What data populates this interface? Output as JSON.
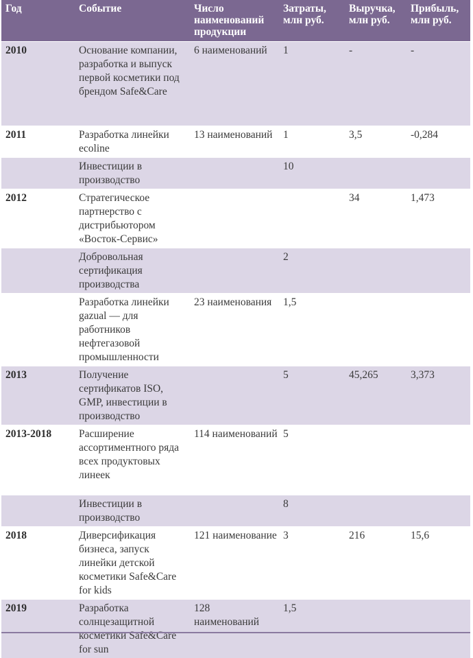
{
  "headers": [
    "Год",
    "Событие",
    "Число наименований продукции",
    "Затраты, млн руб.",
    "Выручка, млн руб.",
    "Прибыль, млн руб."
  ],
  "rows": [
    {
      "year": "2010",
      "event": "Основание компании, разработка и выпуск первой косметики под брендом Safe&Care",
      "products": "6 наименований",
      "costs": "1",
      "revenue": "-",
      "profit": "-"
    },
    {
      "year": "2011",
      "event": "Разработка линейки ecoline",
      "products": "13 наименований",
      "costs": "1",
      "revenue": "3,5",
      "profit": "-0,284"
    },
    {
      "year": "",
      "event": "Инвестиции в производство",
      "products": "",
      "costs": "10",
      "revenue": "",
      "profit": ""
    },
    {
      "year": "2012",
      "event": "Стратегическое партнерство с дистрибьютором «Восток-Сервис»",
      "products": "",
      "costs": "",
      "revenue": "34",
      "profit": "1,473"
    },
    {
      "year": "",
      "event": "Добровольная сертификация производства",
      "products": "",
      "costs": "2",
      "revenue": "",
      "profit": ""
    },
    {
      "year": "",
      "event": "Разработка линейки gazual — для работников нефтегазовой промышленности",
      "products": "23 наименования",
      "costs": "1,5",
      "revenue": "",
      "profit": ""
    },
    {
      "year": "2013",
      "event": "Получение сертификатов ISO, GMP, инвестиции в производство",
      "products": "",
      "costs": "5",
      "revenue": "45,265",
      "profit": "3,373"
    },
    {
      "year": "2013-2018",
      "event": "Расширение ассортиментного ряда всех продуктовых линеек",
      "products": "114 наименований",
      "costs": "5",
      "revenue": "",
      "profit": ""
    },
    {
      "year": "",
      "event": "Инвестиции в производство",
      "products": "",
      "costs": "8",
      "revenue": "",
      "profit": ""
    },
    {
      "year": "2018",
      "event": "Диверсификация бизнеса, запуск линейки детской косметики Safe&Care for kids",
      "products": "121 наименование",
      "costs": "3",
      "revenue": "216",
      "profit": "15,6"
    },
    {
      "year": "2019",
      "event": "Разработка солнцезащитной косметики Safe&Care for sun",
      "products": "128 наименований",
      "costs": "1,5",
      "revenue": "",
      "profit": ""
    }
  ]
}
